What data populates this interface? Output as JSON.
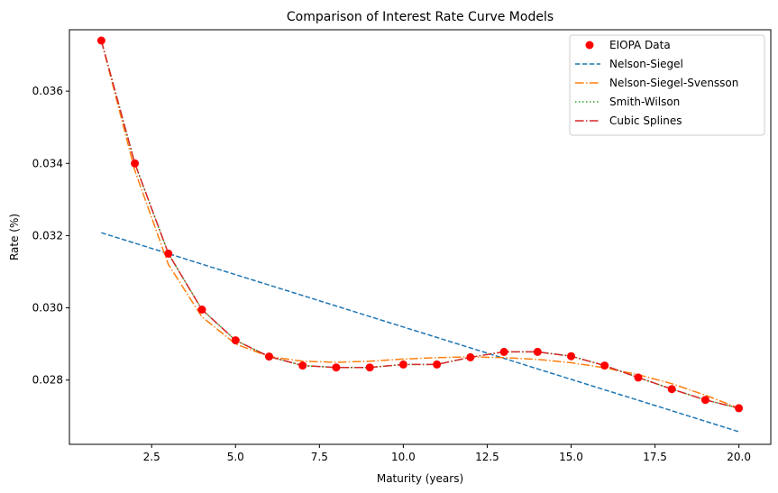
{
  "chart_data": {
    "type": "line",
    "title": "Comparison of Interest Rate Curve Models",
    "xlabel": "Maturity (years)",
    "ylabel": "Rate (%)",
    "xlim": [
      0.05,
      20.95
    ],
    "ylim": [
      0.02622,
      0.0377
    ],
    "xticks": [
      2.5,
      5.0,
      7.5,
      10.0,
      12.5,
      15.0,
      17.5,
      20.0
    ],
    "xtick_labels": [
      "2.5",
      "5.0",
      "7.5",
      "10.0",
      "12.5",
      "15.0",
      "17.5",
      "20.0"
    ],
    "yticks": [
      0.028,
      0.03,
      0.032,
      0.034,
      0.036
    ],
    "ytick_labels": [
      "0.028",
      "0.030",
      "0.032",
      "0.034",
      "0.036"
    ],
    "grid": false,
    "legend_position": "top-right",
    "x": [
      1,
      2,
      3,
      4,
      5,
      6,
      7,
      8,
      9,
      10,
      11,
      12,
      13,
      14,
      15,
      16,
      17,
      18,
      19,
      20
    ],
    "series": [
      {
        "name": "EIOPA Data",
        "style": "scatter",
        "color": "#ff0000",
        "values": [
          0.0374,
          0.034,
          0.0315,
          0.02995,
          0.0291,
          0.02865,
          0.0284,
          0.02835,
          0.02835,
          0.02843,
          0.02843,
          0.02863,
          0.02878,
          0.02878,
          0.02866,
          0.0284,
          0.02807,
          0.02775,
          0.02745,
          0.02722
        ]
      },
      {
        "name": "Nelson-Siegel",
        "style": "dashed",
        "color": "#1f77b4",
        "values": [
          0.03208,
          0.03179,
          0.0315,
          0.03121,
          0.03092,
          0.03063,
          0.03034,
          0.03005,
          0.02976,
          0.02947,
          0.02918,
          0.02889,
          0.0286,
          0.02831,
          0.02802,
          0.02773,
          0.02744,
          0.02715,
          0.02686,
          0.02657
        ]
      },
      {
        "name": "Nelson-Siegel-Svensson",
        "style": "dashdot",
        "color": "#ff7f0e",
        "values": [
          0.0374,
          0.0338,
          0.0312,
          0.02975,
          0.029,
          0.02865,
          0.02852,
          0.02849,
          0.02852,
          0.02858,
          0.02862,
          0.02864,
          0.02862,
          0.02857,
          0.02848,
          0.02834,
          0.02815,
          0.0279,
          0.02758,
          0.02722
        ]
      },
      {
        "name": "Smith-Wilson",
        "style": "dotted",
        "color": "#2ca02c",
        "values": [
          0.0374,
          0.034,
          0.0315,
          0.02995,
          0.0291,
          0.02865,
          0.0284,
          0.02835,
          0.02835,
          0.02843,
          0.02843,
          0.02863,
          0.02878,
          0.02878,
          0.02866,
          0.0284,
          0.02807,
          0.02775,
          0.02745,
          0.02722
        ]
      },
      {
        "name": "Cubic Splines",
        "style": "dashdot",
        "color": "#d62728",
        "values": [
          0.0374,
          0.034,
          0.0315,
          0.02995,
          0.0291,
          0.02865,
          0.0284,
          0.02835,
          0.02835,
          0.02843,
          0.02843,
          0.02863,
          0.02878,
          0.02878,
          0.02866,
          0.0284,
          0.02807,
          0.02775,
          0.02745,
          0.02722
        ]
      }
    ]
  }
}
